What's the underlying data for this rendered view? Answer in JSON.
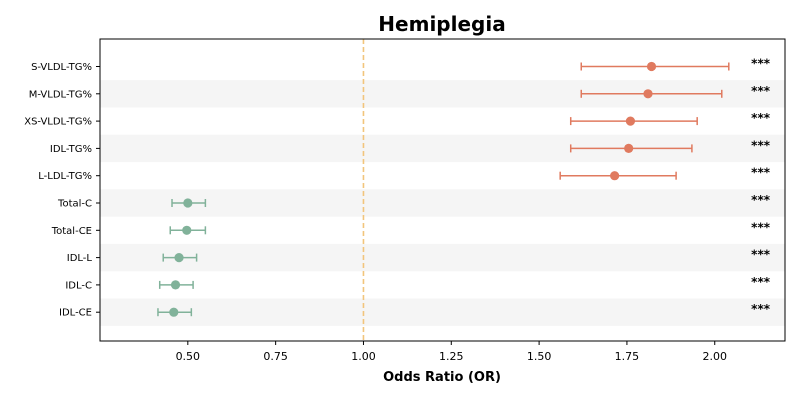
{
  "chart_data": {
    "type": "forest",
    "title": "Hemiplegia",
    "xlabel": "Odds Ratio (OR)",
    "xlim": [
      0.25,
      2.2
    ],
    "xticks": [
      "0.50",
      "0.75",
      "1.00",
      "1.25",
      "1.50",
      "1.75",
      "2.00"
    ],
    "reference_line": 1.0,
    "grid": false,
    "colors": {
      "increased": "#e07a5f",
      "decreased": "#81b29a",
      "reference": "#f2c57c",
      "row_band": "#f5f5f5"
    },
    "rows": [
      {
        "label": "S-VLDL-TG%",
        "or": 1.82,
        "ci_low": 1.62,
        "ci_high": 2.04,
        "sig": "***",
        "direction": "increased"
      },
      {
        "label": "M-VLDL-TG%",
        "or": 1.81,
        "ci_low": 1.62,
        "ci_high": 2.02,
        "sig": "***",
        "direction": "increased"
      },
      {
        "label": "XS-VLDL-TG%",
        "or": 1.76,
        "ci_low": 1.59,
        "ci_high": 1.95,
        "sig": "***",
        "direction": "increased"
      },
      {
        "label": "IDL-TG%",
        "or": 1.755,
        "ci_low": 1.59,
        "ci_high": 1.935,
        "sig": "***",
        "direction": "increased"
      },
      {
        "label": "L-LDL-TG%",
        "or": 1.715,
        "ci_low": 1.56,
        "ci_high": 1.89,
        "sig": "***",
        "direction": "increased"
      },
      {
        "label": "Total-C",
        "or": 0.5,
        "ci_low": 0.455,
        "ci_high": 0.55,
        "sig": "***",
        "direction": "decreased"
      },
      {
        "label": "Total-CE",
        "or": 0.497,
        "ci_low": 0.45,
        "ci_high": 0.55,
        "sig": "***",
        "direction": "decreased"
      },
      {
        "label": "IDL-L",
        "or": 0.475,
        "ci_low": 0.43,
        "ci_high": 0.525,
        "sig": "***",
        "direction": "decreased"
      },
      {
        "label": "IDL-C",
        "or": 0.465,
        "ci_low": 0.42,
        "ci_high": 0.515,
        "sig": "***",
        "direction": "decreased"
      },
      {
        "label": "IDL-CE",
        "or": 0.46,
        "ci_low": 0.415,
        "ci_high": 0.51,
        "sig": "***",
        "direction": "decreased"
      }
    ]
  }
}
